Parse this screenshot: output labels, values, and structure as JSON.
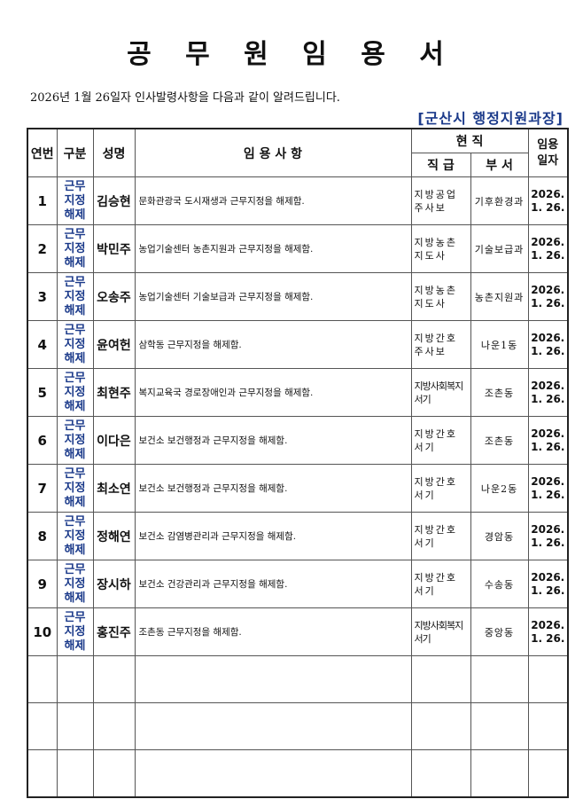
{
  "title": "공 무 원 임 용 서",
  "intro": "2026년 1월 26일자 인사발령사항을 다음과 같이 알려드립니다.",
  "issuer": "[군산시 행정지원과장]",
  "headers": {
    "no": "연번",
    "kind": "구분",
    "name": "성명",
    "desc": "임 용 사 항",
    "current": "현 직",
    "rank": "직 급",
    "dept": "부 서",
    "date": "임용일자"
  },
  "rows": [
    {
      "no": "1",
      "kind": "근무지정해제",
      "name": "김승현",
      "desc": "문화관광국 도시재생과 근무지정을 해제함.",
      "rank": [
        "지방공업",
        "주사보"
      ],
      "dept": "기후환경과",
      "date": [
        "2026.",
        "1. 26."
      ]
    },
    {
      "no": "2",
      "kind": "근무지정해제",
      "name": "박민주",
      "desc": "농업기술센터 농촌지원과 근무지정을 해제함.",
      "rank": [
        "지방농촌",
        "지도사"
      ],
      "dept": "기술보급과",
      "date": [
        "2026.",
        "1. 26."
      ]
    },
    {
      "no": "3",
      "kind": "근무지정해제",
      "name": "오송주",
      "desc": "농업기술센터 기술보급과 근무지정을 해제함.",
      "rank": [
        "지방농촌",
        "지도사"
      ],
      "dept": "농촌지원과",
      "date": [
        "2026.",
        "1. 26."
      ]
    },
    {
      "no": "4",
      "kind": "근무지정해제",
      "name": "윤여헌",
      "desc": "삼학동 근무지정을 해제함.",
      "rank": [
        "지방간호",
        "주사보"
      ],
      "dept": "나운1동",
      "date": [
        "2026.",
        "1. 26."
      ]
    },
    {
      "no": "5",
      "kind": "근무지정해제",
      "name": "최현주",
      "desc": "복지교육국 경로장애인과 근무지정을 해제함.",
      "rank": [
        "지방사회복지",
        "서기"
      ],
      "dept": "조촌동",
      "date": [
        "2026.",
        "1. 26."
      ]
    },
    {
      "no": "6",
      "kind": "근무지정해제",
      "name": "이다은",
      "desc": "보건소 보건행정과 근무지정을 해제함.",
      "rank": [
        "지방간호",
        "서기"
      ],
      "dept": "조촌동",
      "date": [
        "2026.",
        "1. 26."
      ]
    },
    {
      "no": "7",
      "kind": "근무지정해제",
      "name": "최소연",
      "desc": "보건소 보건행정과 근무지정을 해제함.",
      "rank": [
        "지방간호",
        "서기"
      ],
      "dept": "나운2동",
      "date": [
        "2026.",
        "1. 26."
      ]
    },
    {
      "no": "8",
      "kind": "근무지정해제",
      "name": "정해연",
      "desc": "보건소 감염병관리과 근무지정을 해제함.",
      "rank": [
        "지방간호",
        "서기"
      ],
      "dept": "경암동",
      "date": [
        "2026.",
        "1. 26."
      ]
    },
    {
      "no": "9",
      "kind": "근무지정해제",
      "name": "장시하",
      "desc": "보건소 건강관리과 근무지정을 해제함.",
      "rank": [
        "지방간호",
        "서기"
      ],
      "dept": "수송동",
      "date": [
        "2026.",
        "1. 26."
      ]
    },
    {
      "no": "10",
      "kind": "근무지정해제",
      "name": "홍진주",
      "desc": "조촌동 근무지정을 해제함.",
      "rank": [
        "지방사회복지",
        "서기"
      ],
      "dept": "중앙동",
      "date": [
        "2026.",
        "1. 26."
      ]
    }
  ],
  "colors": {
    "accent": "#1b3a8a",
    "text": "#111111",
    "border": "#555555"
  }
}
